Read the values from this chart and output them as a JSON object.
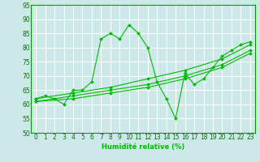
{
  "xlabel": "Humidité relative (%)",
  "xlim": [
    -0.5,
    23.5
  ],
  "ylim": [
    50,
    95
  ],
  "yticks": [
    50,
    55,
    60,
    65,
    70,
    75,
    80,
    85,
    90,
    95
  ],
  "xticks": [
    0,
    1,
    2,
    3,
    4,
    5,
    6,
    7,
    8,
    9,
    10,
    11,
    12,
    13,
    14,
    15,
    16,
    17,
    18,
    19,
    20,
    21,
    22,
    23
  ],
  "bg_color": "#cce8e8",
  "grid_color": "#ffffff",
  "line_color": "#00bb00",
  "lines": [
    {
      "x": [
        0,
        1,
        2,
        3,
        4,
        5,
        6,
        7,
        8,
        9,
        10,
        11,
        12,
        13,
        14,
        15,
        16,
        17,
        18,
        19,
        20,
        21,
        22,
        23
      ],
      "y": [
        62,
        63,
        62,
        60,
        65,
        65,
        68,
        83,
        85,
        83,
        88,
        85,
        80,
        68,
        62,
        55,
        71,
        67,
        69,
        73,
        77,
        79,
        81,
        82
      ]
    },
    {
      "x": [
        0,
        4,
        8,
        12,
        16,
        20,
        23
      ],
      "y": [
        62,
        64,
        66,
        69,
        72,
        76,
        81
      ]
    },
    {
      "x": [
        0,
        4,
        8,
        12,
        16,
        20,
        23
      ],
      "y": [
        61,
        63,
        65,
        67,
        70,
        74,
        79
      ]
    },
    {
      "x": [
        0,
        4,
        8,
        12,
        16,
        20,
        23
      ],
      "y": [
        61,
        62,
        64,
        66,
        69,
        73,
        78
      ]
    }
  ]
}
